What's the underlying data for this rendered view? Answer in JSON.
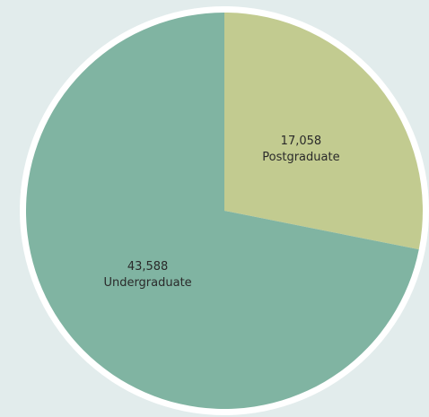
{
  "chart_data": {
    "type": "pie",
    "slices": [
      {
        "label": "Postgraduate",
        "value_text": "17,058",
        "value": 17058,
        "color": "#c2cb90"
      },
      {
        "label": "Undergraduate",
        "value_text": "43,588",
        "value": 43588,
        "color": "#80b4a2"
      }
    ],
    "start_angle_deg": 0,
    "direction": "clockwise",
    "border_color": "#ffffff",
    "background_color": "#e2ecec"
  }
}
